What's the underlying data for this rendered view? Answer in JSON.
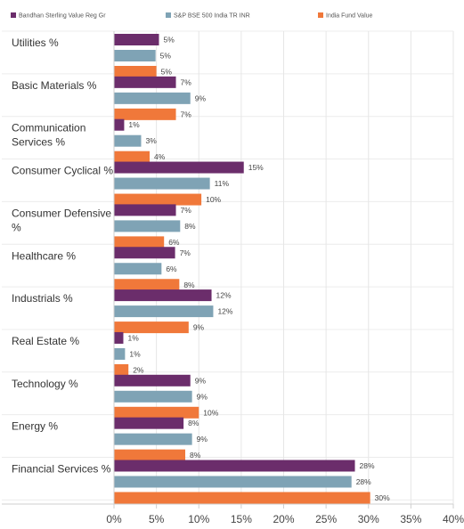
{
  "chart_data": {
    "type": "bar",
    "orientation": "horizontal",
    "categories": [
      [
        "Utilities %"
      ],
      [
        "Basic Materials %"
      ],
      [
        "Communication",
        "Services %"
      ],
      [
        "Consumer Cyclical %"
      ],
      [
        "Consumer Defensive",
        "%"
      ],
      [
        "Healthcare %"
      ],
      [
        "Industrials %"
      ],
      [
        "Real Estate %"
      ],
      [
        "Technology %"
      ],
      [
        "Energy %"
      ],
      [
        "Financial Services %"
      ]
    ],
    "series": [
      {
        "name": "Bandhan Sterling Value Reg Gr",
        "color": "#6b2d6b",
        "values": [
          5.3,
          7.3,
          1.2,
          15.3,
          7.3,
          7.2,
          11.5,
          1.1,
          9.0,
          8.2,
          28.4
        ],
        "labels": [
          "5%",
          "7%",
          "1%",
          "15%",
          "7%",
          "7%",
          "12%",
          "1%",
          "9%",
          "8%",
          "28%"
        ]
      },
      {
        "name": "S&P BSE 500 India TR INR",
        "color": "#7fa3b5",
        "values": [
          4.9,
          9.0,
          3.2,
          11.3,
          7.8,
          5.6,
          11.7,
          1.3,
          9.2,
          9.2,
          28.0
        ],
        "labels": [
          "5%",
          "9%",
          "3%",
          "11%",
          "8%",
          "6%",
          "12%",
          "1%",
          "9%",
          "9%",
          "28%"
        ]
      },
      {
        "name": "India Fund Value",
        "color": "#f0783a",
        "values": [
          5.0,
          7.3,
          4.2,
          10.3,
          5.9,
          7.7,
          8.8,
          1.7,
          10.0,
          8.4,
          30.2
        ],
        "labels": [
          "5%",
          "7%",
          "4%",
          "10%",
          "6%",
          "8%",
          "9%",
          "2%",
          "10%",
          "8%",
          "30%"
        ]
      }
    ],
    "xlim": [
      0,
      40
    ],
    "xticks": [
      0,
      5,
      10,
      15,
      20,
      25,
      30,
      35,
      40
    ],
    "xtick_labels": [
      "0%",
      "5%",
      "10%",
      "15%",
      "20%",
      "25%",
      "30%",
      "35%",
      "40%"
    ],
    "legend_position": "top",
    "grid": true,
    "title": "",
    "xlabel": "",
    "ylabel": ""
  }
}
